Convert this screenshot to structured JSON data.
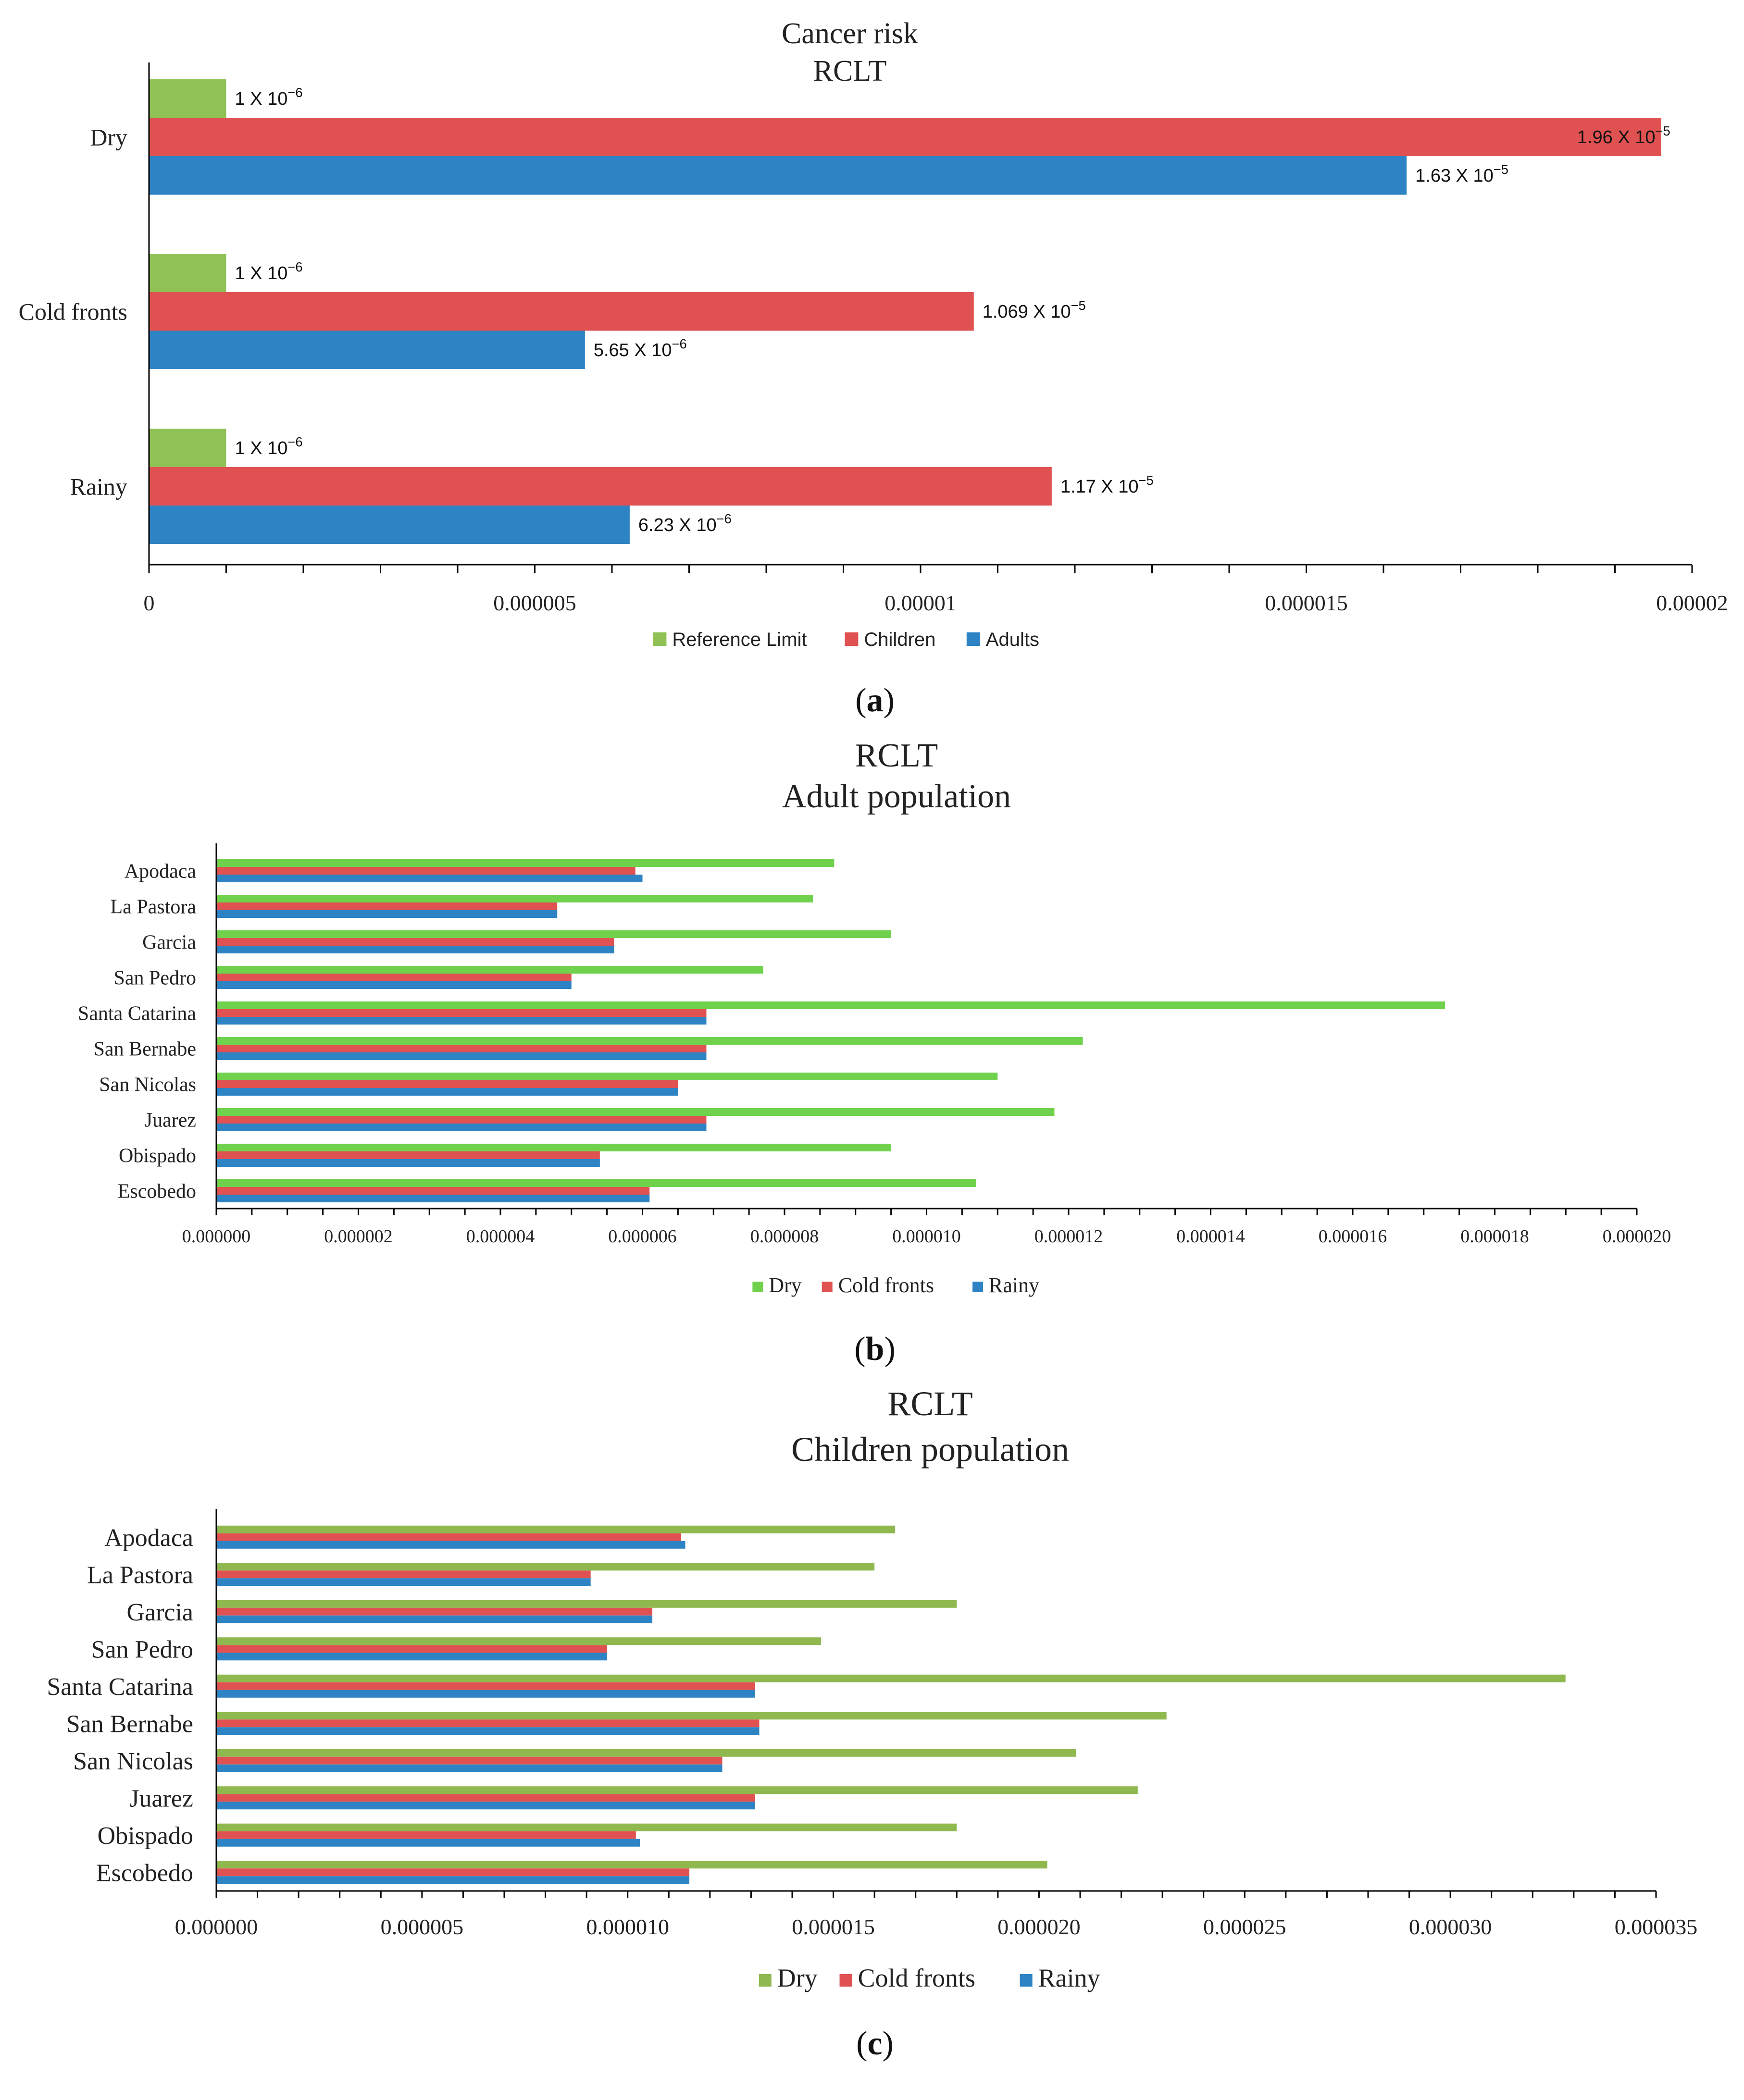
{
  "chart_data": [
    {
      "type": "bar",
      "orientation": "horizontal",
      "panel_label_prefix": "(",
      "panel_label_letter": "a",
      "panel_label_suffix": ")",
      "title": "Cancer risk",
      "subtitle": "RCLT",
      "categories": [
        "Dry",
        "Cold fronts",
        "Rainy"
      ],
      "series": [
        {
          "name": "Reference Limit",
          "color": "#8fc154",
          "values": [
            1e-06,
            1e-06,
            1e-06
          ],
          "labels": [
            "1 X 10",
            "1 X 10",
            "1 X 10"
          ],
          "label_exp": [
            "−6",
            "−6",
            "−6"
          ]
        },
        {
          "name": "Children",
          "color": "#e05252",
          "values": [
            1.96e-05,
            1.069e-05,
            1.17e-05
          ],
          "labels": [
            "1.96 X 10",
            "1.069 X 10",
            "1.17 X 10"
          ],
          "label_exp": [
            "−5",
            "−5",
            "−5"
          ]
        },
        {
          "name": "Adults",
          "color": "#2d83c4",
          "values": [
            1.63e-05,
            5.65e-06,
            6.23e-06
          ],
          "labels": [
            "1.63 X 10",
            "5.65 X 10",
            "6.23 X 10"
          ],
          "label_exp": [
            "−5",
            "−6",
            "−6"
          ]
        }
      ],
      "xlim": [
        0,
        2e-05
      ],
      "xticks": [
        0,
        5e-06,
        1e-05,
        1.5e-05,
        2e-05
      ],
      "xtick_labels": [
        "0",
        "0.000005",
        "0.00001",
        "0.000015",
        "0.00002"
      ],
      "legend": [
        "Reference Limit",
        "Children",
        "Adults"
      ]
    },
    {
      "type": "bar",
      "orientation": "horizontal",
      "panel_label_prefix": "(",
      "panel_label_letter": "b",
      "panel_label_suffix": ")",
      "title": "RCLT",
      "subtitle": "Adult population",
      "categories": [
        "Apodaca",
        "La Pastora",
        "Garcia",
        "San Pedro",
        "Santa Catarina",
        "San Bernabe",
        "San Nicolas",
        "Juarez",
        "Obispado",
        "Escobedo"
      ],
      "series": [
        {
          "name": "Dry",
          "color": "#6fd14c",
          "values": [
            8.7e-06,
            8.4e-06,
            9.5e-06,
            7.7e-06,
            1.73e-05,
            1.22e-05,
            1.1e-05,
            1.18e-05,
            9.5e-06,
            1.07e-05
          ]
        },
        {
          "name": "Cold fronts",
          "color": "#e05252",
          "values": [
            5.9e-06,
            4.8e-06,
            5.6e-06,
            5e-06,
            6.9e-06,
            6.9e-06,
            6.5e-06,
            6.9e-06,
            5.4e-06,
            6.1e-06
          ]
        },
        {
          "name": "Rainy",
          "color": "#2d83c4",
          "values": [
            6e-06,
            4.8e-06,
            5.6e-06,
            5e-06,
            6.9e-06,
            6.9e-06,
            6.5e-06,
            6.9e-06,
            5.4e-06,
            6.1e-06
          ]
        }
      ],
      "xlim": [
        0,
        2e-05
      ],
      "xticks": [
        0,
        2e-06,
        4e-06,
        6e-06,
        8e-06,
        1e-05,
        1.2e-05,
        1.4e-05,
        1.6e-05,
        1.8e-05,
        2e-05
      ],
      "xtick_labels": [
        "0.000000",
        "0.000002",
        "0.000004",
        "0.000006",
        "0.000008",
        "0.000010",
        "0.000012",
        "0.000014",
        "0.000016",
        "0.000018",
        "0.000020"
      ],
      "legend": [
        "Dry",
        "Cold fronts",
        "Rainy"
      ]
    },
    {
      "type": "bar",
      "orientation": "horizontal",
      "panel_label_prefix": "(",
      "panel_label_letter": "c",
      "panel_label_suffix": ")",
      "title": "RCLT",
      "subtitle": "Children  population",
      "categories": [
        "Apodaca",
        "La Pastora",
        "Garcia",
        "San Pedro",
        "Santa Catarina",
        "San Bernabe",
        "San Nicolas",
        "Juarez",
        "Obispado",
        "Escobedo"
      ],
      "series": [
        {
          "name": "Dry",
          "color": "#8fb84f",
          "values": [
            1.65e-05,
            1.6e-05,
            1.8e-05,
            1.47e-05,
            3.28e-05,
            2.31e-05,
            2.09e-05,
            2.24e-05,
            1.8e-05,
            2.02e-05
          ]
        },
        {
          "name": "Cold fronts",
          "color": "#e05252",
          "values": [
            1.13e-05,
            9.1e-06,
            1.06e-05,
            9.5e-06,
            1.31e-05,
            1.32e-05,
            1.23e-05,
            1.31e-05,
            1.02e-05,
            1.15e-05
          ]
        },
        {
          "name": "Rainy",
          "color": "#2d83c4",
          "values": [
            1.14e-05,
            9.1e-06,
            1.06e-05,
            9.5e-06,
            1.31e-05,
            1.32e-05,
            1.23e-05,
            1.31e-05,
            1.03e-05,
            1.15e-05
          ]
        }
      ],
      "xlim": [
        0,
        3.5e-05
      ],
      "xticks": [
        0,
        5e-06,
        1e-05,
        1.5e-05,
        2e-05,
        2.5e-05,
        3e-05,
        3.5e-05
      ],
      "xtick_labels": [
        "0.000000",
        "0.000005",
        "0.000010",
        "0.000015",
        "0.000020",
        "0.000025",
        "0.000030",
        "0.000035"
      ],
      "legend": [
        "Dry",
        "Cold fronts",
        "Rainy"
      ]
    }
  ]
}
